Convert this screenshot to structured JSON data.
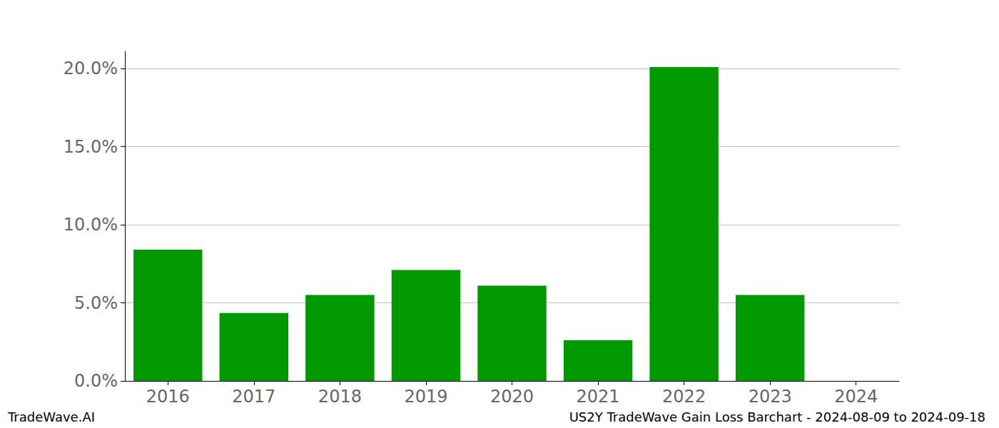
{
  "chart_data": {
    "type": "bar",
    "title": "US2Y TradeWave Gain Loss Barchart - 2024-08-09 to 2024-09-18",
    "annotations": [
      "TradeWave.AI"
    ],
    "categories": [
      "2016",
      "2017",
      "2018",
      "2019",
      "2020",
      "2021",
      "2022",
      "2023",
      "2024"
    ],
    "values": [
      8.4,
      4.35,
      5.5,
      7.1,
      6.1,
      2.6,
      20.1,
      5.5,
      null
    ],
    "color": "#009900",
    "ylim": [
      0,
      21.1
    ],
    "yticks": [
      {
        "value": 0,
        "label": "0.0%"
      },
      {
        "value": 5,
        "label": "5.0%"
      },
      {
        "value": 10,
        "label": "10.0%"
      },
      {
        "value": 15,
        "label": "15.0%"
      },
      {
        "value": 20,
        "label": "20.0%"
      }
    ],
    "grid": true
  }
}
